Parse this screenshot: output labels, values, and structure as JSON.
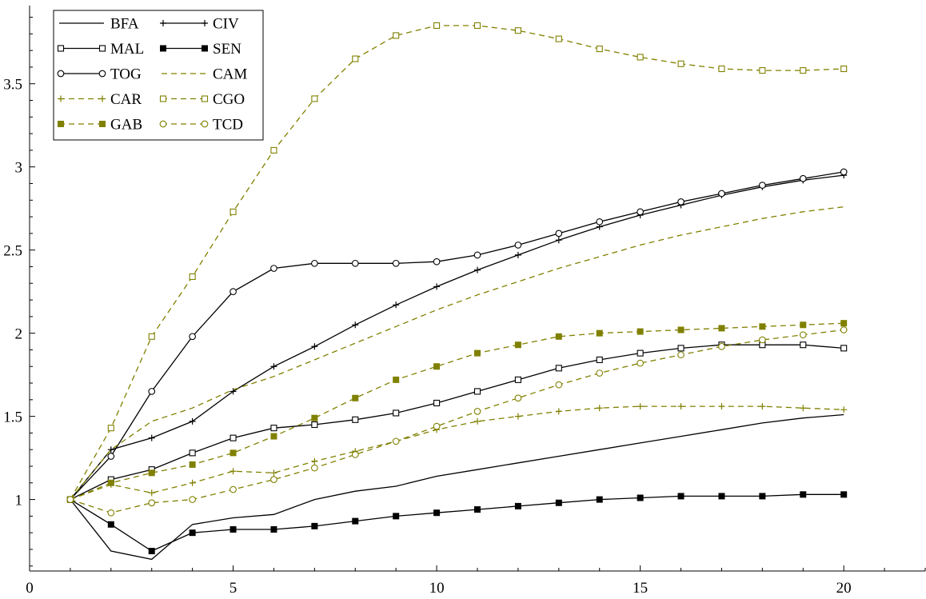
{
  "chart_data": {
    "type": "line",
    "title": "",
    "xlabel": "",
    "ylabel": "",
    "xlim": [
      0,
      22
    ],
    "ylim": [
      0.57,
      3.97
    ],
    "grid": false,
    "legend_position": "top-left",
    "x_ticks": [
      0,
      5,
      10,
      15,
      20
    ],
    "y_ticks": [
      1,
      1.5,
      2,
      2.5,
      3,
      3.5
    ],
    "x": [
      1,
      2,
      3,
      4,
      5,
      6,
      7,
      8,
      9,
      10,
      11,
      12,
      13,
      14,
      15,
      16,
      17,
      18,
      19,
      20
    ],
    "colors": {
      "black": "#000000",
      "olive": "#808000"
    },
    "series": [
      {
        "name": "BFA",
        "color": "#000000",
        "dash": "solid",
        "marker": "none",
        "values": [
          1.0,
          0.69,
          0.64,
          0.85,
          0.89,
          0.91,
          1.0,
          1.05,
          1.08,
          1.14,
          1.18,
          1.22,
          1.26,
          1.3,
          1.34,
          1.38,
          1.42,
          1.46,
          1.49,
          1.51
        ]
      },
      {
        "name": "CIV",
        "color": "#000000",
        "dash": "solid",
        "marker": "plus",
        "values": [
          1.0,
          1.3,
          1.37,
          1.47,
          1.65,
          1.8,
          1.92,
          2.05,
          2.17,
          2.28,
          2.38,
          2.47,
          2.56,
          2.64,
          2.71,
          2.77,
          2.83,
          2.88,
          2.92,
          2.95
        ]
      },
      {
        "name": "MAL",
        "color": "#000000",
        "dash": "solid",
        "marker": "square-open",
        "values": [
          1.0,
          1.12,
          1.18,
          1.28,
          1.37,
          1.43,
          1.45,
          1.48,
          1.52,
          1.58,
          1.65,
          1.72,
          1.79,
          1.84,
          1.88,
          1.91,
          1.93,
          1.93,
          1.93,
          1.91
        ]
      },
      {
        "name": "SEN",
        "color": "#000000",
        "dash": "solid",
        "marker": "square-filled",
        "values": [
          1.0,
          0.85,
          0.69,
          0.8,
          0.82,
          0.82,
          0.84,
          0.87,
          0.9,
          0.92,
          0.94,
          0.96,
          0.98,
          1.0,
          1.01,
          1.02,
          1.02,
          1.02,
          1.03,
          1.03
        ]
      },
      {
        "name": "TOG",
        "color": "#000000",
        "dash": "solid",
        "marker": "circle-open",
        "values": [
          1.0,
          1.26,
          1.65,
          1.98,
          2.25,
          2.39,
          2.42,
          2.42,
          2.42,
          2.43,
          2.47,
          2.53,
          2.6,
          2.67,
          2.73,
          2.79,
          2.84,
          2.89,
          2.93,
          2.97
        ]
      },
      {
        "name": "CAM",
        "color": "#808000",
        "dash": "dashed",
        "marker": "none",
        "values": [
          1.0,
          1.3,
          1.47,
          1.55,
          1.66,
          1.74,
          1.84,
          1.94,
          2.04,
          2.14,
          2.23,
          2.31,
          2.39,
          2.46,
          2.53,
          2.59,
          2.64,
          2.69,
          2.73,
          2.76
        ]
      },
      {
        "name": "CAR",
        "color": "#808000",
        "dash": "dashed",
        "marker": "plus",
        "values": [
          1.0,
          1.09,
          1.04,
          1.1,
          1.17,
          1.16,
          1.23,
          1.29,
          1.35,
          1.42,
          1.47,
          1.5,
          1.53,
          1.55,
          1.56,
          1.56,
          1.56,
          1.56,
          1.55,
          1.54
        ]
      },
      {
        "name": "CGO",
        "color": "#808000",
        "dash": "dashed",
        "marker": "square-open",
        "values": [
          1.0,
          1.43,
          1.98,
          2.34,
          2.73,
          3.1,
          3.41,
          3.65,
          3.79,
          3.85,
          3.85,
          3.82,
          3.77,
          3.71,
          3.66,
          3.62,
          3.59,
          3.58,
          3.58,
          3.59
        ]
      },
      {
        "name": "GAB",
        "color": "#808000",
        "dash": "dashed",
        "marker": "square-filled",
        "values": [
          1.0,
          1.1,
          1.16,
          1.21,
          1.28,
          1.38,
          1.49,
          1.61,
          1.72,
          1.8,
          1.88,
          1.93,
          1.98,
          2.0,
          2.01,
          2.02,
          2.03,
          2.04,
          2.05,
          2.06
        ]
      },
      {
        "name": "TCD",
        "color": "#808000",
        "dash": "dashed",
        "marker": "circle-open",
        "values": [
          1.0,
          0.92,
          0.98,
          1.0,
          1.06,
          1.12,
          1.19,
          1.27,
          1.35,
          1.44,
          1.53,
          1.61,
          1.69,
          1.76,
          1.82,
          1.87,
          1.92,
          1.96,
          1.99,
          2.02
        ]
      }
    ]
  }
}
